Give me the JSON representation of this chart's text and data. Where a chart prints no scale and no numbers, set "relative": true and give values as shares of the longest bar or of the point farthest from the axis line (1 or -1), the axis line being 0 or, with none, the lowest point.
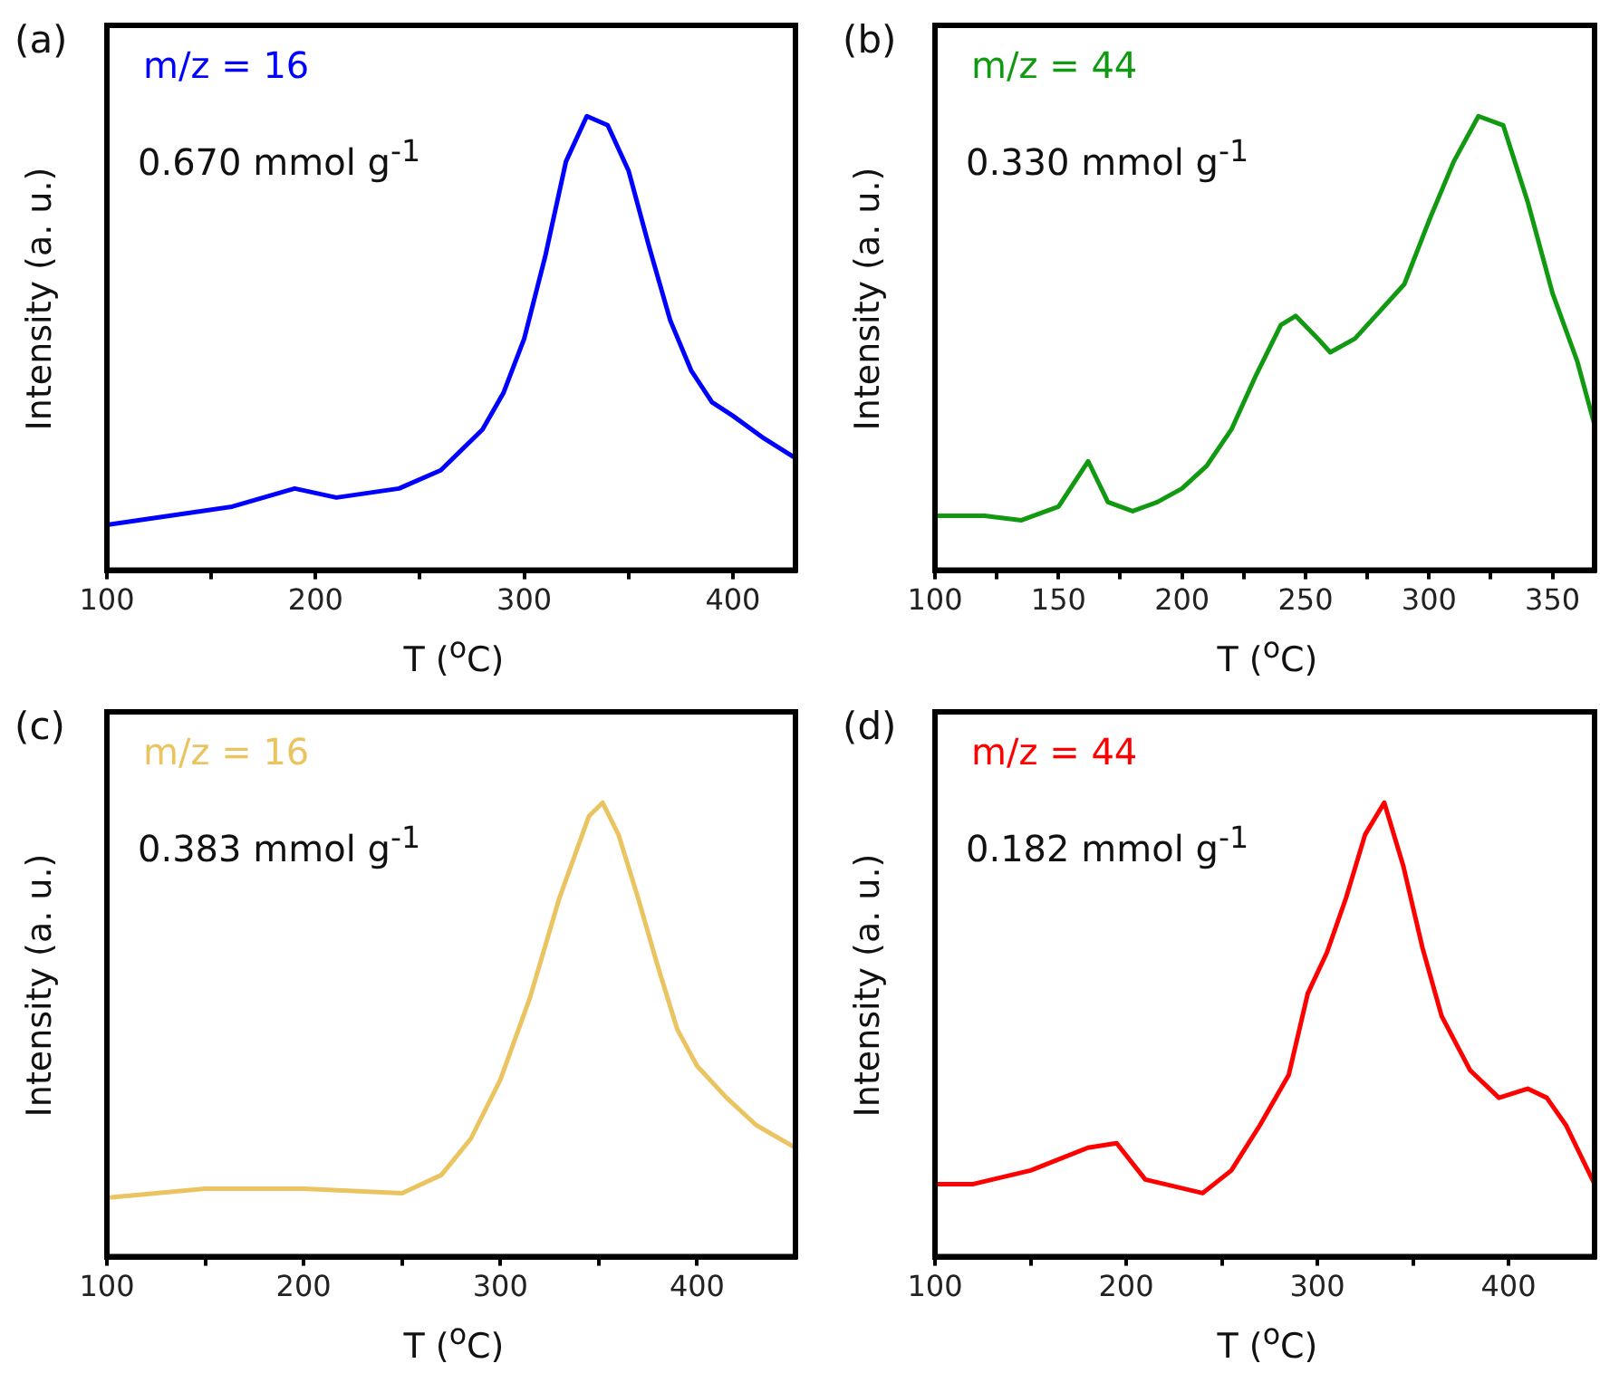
{
  "chart_data": [
    {
      "type": "line",
      "relative": true,
      "xlabel": "T ($^{o}$C)",
      "ylabel": "Intensity (a. u.)",
      "annotations": [
        "(a)",
        "0.670 mmol g$^{-1}$"
      ],
      "xlim": [
        100,
        430
      ],
      "xticks": [
        100,
        {
          "value": 150,
          "label": null
        },
        200,
        {
          "value": 250,
          "label": null
        },
        300,
        {
          "value": 350,
          "label": null
        },
        400
      ],
      "series": [
        {
          "name": "m/z = 16",
          "color": "#0000ff",
          "x": [
            100,
            130,
            160,
            190,
            210,
            240,
            260,
            280,
            290,
            300,
            310,
            320,
            330,
            340,
            350,
            360,
            370,
            380,
            390,
            400,
            415,
            429
          ],
          "values": [
            0.1,
            0.12,
            0.14,
            0.18,
            0.16,
            0.18,
            0.22,
            0.31,
            0.39,
            0.51,
            0.69,
            0.9,
            1.0,
            0.98,
            0.88,
            0.71,
            0.55,
            0.44,
            0.37,
            0.34,
            0.29,
            0.25
          ]
        }
      ]
    },
    {
      "type": "line",
      "relative": true,
      "xlabel": "T ($^{o}$C)",
      "ylabel": "Intensity (a. u.)",
      "annotations": [
        "(b)",
        "0.330 mmol g$^{-1}$"
      ],
      "xlim": [
        100,
        367
      ],
      "xticks": [
        100,
        {
          "value": 125,
          "label": null
        },
        150,
        {
          "value": 175,
          "label": null
        },
        200,
        {
          "value": 225,
          "label": null
        },
        250,
        {
          "value": 275,
          "label": null
        },
        300,
        {
          "value": 325,
          "label": null
        },
        350
      ],
      "series": [
        {
          "name": "m/z = 44",
          "color": "#119911",
          "x": [
            100,
            120,
            135,
            150,
            162,
            170,
            180,
            190,
            200,
            210,
            220,
            230,
            240,
            246,
            255,
            260,
            270,
            280,
            290,
            300,
            310,
            320,
            330,
            340,
            350,
            360,
            367
          ],
          "values": [
            0.12,
            0.12,
            0.11,
            0.14,
            0.24,
            0.15,
            0.13,
            0.15,
            0.18,
            0.23,
            0.31,
            0.43,
            0.54,
            0.56,
            0.51,
            0.48,
            0.51,
            0.57,
            0.63,
            0.77,
            0.9,
            1.0,
            0.98,
            0.81,
            0.61,
            0.46,
            0.32
          ]
        }
      ]
    },
    {
      "type": "line",
      "relative": true,
      "xlabel": "T ($^{o}$C)",
      "ylabel": "Intensity (a. u.)",
      "annotations": [
        "(c)",
        "0.383 mmol g$^{-1}$"
      ],
      "xlim": [
        100,
        450
      ],
      "xticks": [
        100,
        {
          "value": 150,
          "label": null
        },
        200,
        {
          "value": 250,
          "label": null
        },
        300,
        {
          "value": 350,
          "label": null
        },
        400
      ],
      "series": [
        {
          "name": "m/z = 16",
          "color": "#ebc462",
          "x": [
            100,
            150,
            200,
            250,
            270,
            285,
            300,
            315,
            330,
            345,
            352,
            360,
            370,
            380,
            390,
            400,
            415,
            430,
            450
          ],
          "values": [
            0.13,
            0.15,
            0.15,
            0.14,
            0.18,
            0.26,
            0.39,
            0.57,
            0.79,
            0.97,
            1.0,
            0.93,
            0.79,
            0.64,
            0.5,
            0.42,
            0.35,
            0.29,
            0.24
          ]
        }
      ]
    },
    {
      "type": "line",
      "relative": true,
      "xlabel": "T ($^{o}$C)",
      "ylabel": "Intensity (a. u.)",
      "annotations": [
        "(d)",
        "0.182 mmol g$^{-1}$"
      ],
      "xlim": [
        100,
        445
      ],
      "xticks": [
        100,
        {
          "value": 150,
          "label": null
        },
        200,
        {
          "value": 250,
          "label": null
        },
        300,
        {
          "value": 350,
          "label": null
        },
        400
      ],
      "series": [
        {
          "name": "m/z = 44",
          "color": "#ff0000",
          "x": [
            100,
            120,
            150,
            180,
            195,
            210,
            240,
            255,
            270,
            285,
            295,
            305,
            315,
            325,
            335,
            345,
            355,
            365,
            380,
            395,
            410,
            420,
            430,
            445
          ],
          "values": [
            0.16,
            0.16,
            0.19,
            0.24,
            0.25,
            0.17,
            0.14,
            0.19,
            0.29,
            0.4,
            0.58,
            0.67,
            0.79,
            0.93,
            1.0,
            0.86,
            0.68,
            0.53,
            0.41,
            0.35,
            0.37,
            0.35,
            0.29,
            0.16
          ]
        }
      ]
    }
  ]
}
